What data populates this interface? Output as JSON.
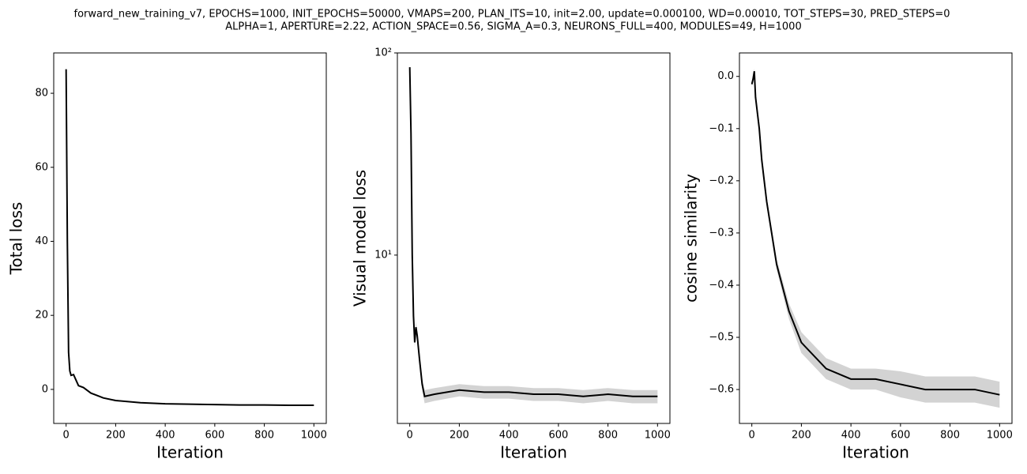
{
  "figure_title": [
    "forward_new_training_v7, EPOCHS=1000, INIT_EPOCHS=50000, VMAPS=200, PLAN_ITS=10, init=2.00, update=0.000100, WD=0.00010, TOT_STEPS=30, PRED_STEPS=0",
    "ALPHA=1, APERTURE=2.22, ACTION_SPACE=0.56, SIGMA_A=0.3, NEURONS_FULL=400, MODULES=49, H=1000"
  ],
  "chart_data": [
    {
      "type": "line",
      "xlabel": "Iteration",
      "ylabel": "Total loss",
      "color": "#000000",
      "x": [
        0,
        5,
        10,
        15,
        20,
        30,
        40,
        50,
        70,
        100,
        150,
        200,
        300,
        400,
        500,
        600,
        700,
        800,
        900,
        1000
      ],
      "values": [
        86.5,
        40,
        10,
        5,
        3.8,
        4,
        2.5,
        1,
        0.5,
        -1,
        -2.3,
        -3,
        -3.6,
        -3.9,
        -4.0,
        -4.1,
        -4.2,
        -4.2,
        -4.3,
        -4.3
      ],
      "xlim": [
        -50,
        1050
      ],
      "ylim": [
        -9.2,
        90.9
      ],
      "xticks": [
        0,
        200,
        400,
        600,
        800,
        1000
      ],
      "yticks": [
        0,
        20,
        40,
        60,
        80
      ]
    },
    {
      "type": "line",
      "xlabel": "Iteration",
      "ylabel": "Visual model loss",
      "color": "#000000",
      "log_y": true,
      "band_color": "#d3d3d3",
      "x": [
        0,
        5,
        10,
        15,
        20,
        25,
        30,
        40,
        50,
        60,
        100,
        200,
        300,
        400,
        500,
        600,
        700,
        800,
        900,
        1000
      ],
      "values": [
        85,
        40,
        10,
        5.0,
        3.7,
        4.4,
        4,
        3,
        2.3,
        2.0,
        2.05,
        2.15,
        2.1,
        2.1,
        2.05,
        2.05,
        2.0,
        2.05,
        2.0,
        2.0
      ],
      "lower": [
        83,
        38,
        9.5,
        4.7,
        3.5,
        4.1,
        3.8,
        2.8,
        2.15,
        1.85,
        1.9,
        2.0,
        1.95,
        1.95,
        1.9,
        1.9,
        1.85,
        1.9,
        1.85,
        1.85
      ],
      "upper": [
        87,
        42,
        10.5,
        5.3,
        3.9,
        4.7,
        4.2,
        3.2,
        2.45,
        2.15,
        2.2,
        2.3,
        2.25,
        2.25,
        2.2,
        2.2,
        2.15,
        2.2,
        2.15,
        2.15
      ],
      "xlim": [
        -50,
        1050
      ],
      "ylim": [
        1.47,
        100
      ],
      "xticks": [
        0,
        200,
        400,
        600,
        800,
        1000
      ],
      "yticks": [
        {
          "value": 10,
          "label": "10¹"
        },
        {
          "value": 100,
          "label": "10²"
        }
      ]
    },
    {
      "type": "line",
      "xlabel": "Iteration",
      "ylabel": "cosine similarity",
      "color": "#000000",
      "band_color": "#d3d3d3",
      "x": [
        0,
        5,
        10,
        15,
        30,
        40,
        50,
        60,
        80,
        100,
        150,
        200,
        300,
        400,
        500,
        600,
        700,
        800,
        900,
        1000
      ],
      "values": [
        -0.015,
        -0.005,
        0.01,
        -0.04,
        -0.1,
        -0.16,
        -0.2,
        -0.24,
        -0.3,
        -0.36,
        -0.45,
        -0.51,
        -0.56,
        -0.58,
        -0.58,
        -0.59,
        -0.6,
        -0.6,
        -0.6,
        -0.61
      ],
      "lower": [
        -0.02,
        -0.01,
        0.005,
        -0.045,
        -0.105,
        -0.17,
        -0.21,
        -0.25,
        -0.31,
        -0.37,
        -0.465,
        -0.53,
        -0.58,
        -0.6,
        -0.6,
        -0.615,
        -0.625,
        -0.625,
        -0.625,
        -0.635
      ],
      "upper": [
        -0.01,
        0.0,
        0.015,
        -0.035,
        -0.095,
        -0.15,
        -0.19,
        -0.23,
        -0.29,
        -0.35,
        -0.435,
        -0.49,
        -0.54,
        -0.56,
        -0.56,
        -0.565,
        -0.575,
        -0.575,
        -0.575,
        -0.585
      ],
      "xlim": [
        -50,
        1050
      ],
      "ylim": [
        -0.665,
        0.045
      ],
      "xticks": [
        0,
        200,
        400,
        600,
        800,
        1000
      ],
      "yticks": [
        {
          "value": -0.6,
          "label": "−0.6"
        },
        {
          "value": -0.5,
          "label": "−0.5"
        },
        {
          "value": -0.4,
          "label": "−0.4"
        },
        {
          "value": -0.3,
          "label": "−0.3"
        },
        {
          "value": -0.2,
          "label": "−0.2"
        },
        {
          "value": -0.1,
          "label": "−0.1"
        },
        {
          "value": 0,
          "label": "0.0"
        }
      ]
    }
  ]
}
